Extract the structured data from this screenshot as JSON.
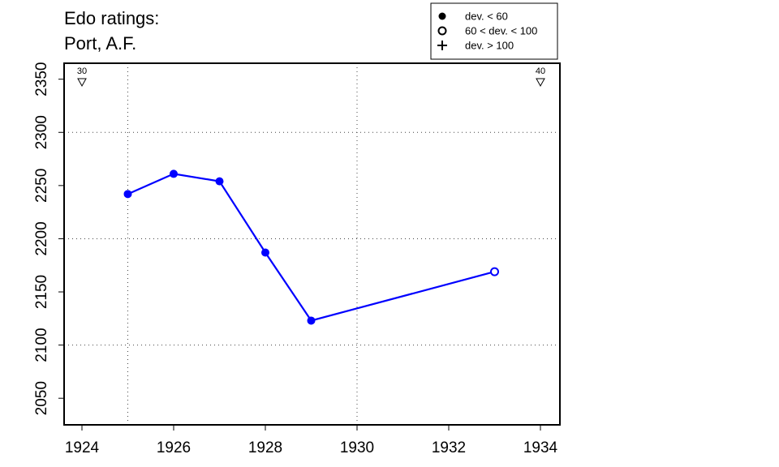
{
  "chart_data": {
    "type": "line",
    "title_lines": [
      "Edo ratings:",
      "Port, A.F."
    ],
    "xlabel": "",
    "ylabel": "",
    "xlim": [
      1924,
      1934
    ],
    "ylim": [
      2025,
      2365
    ],
    "x_ticks": [
      1924,
      1926,
      1928,
      1930,
      1932,
      1934
    ],
    "y_ticks": [
      2050,
      2100,
      2150,
      2200,
      2250,
      2300,
      2350
    ],
    "grid_x": [
      1925,
      1930
    ],
    "grid_y": [
      2100,
      2200,
      2300
    ],
    "series_color": "#0000ff",
    "series": [
      {
        "points": [
          {
            "x": 1925,
            "y": 2242,
            "marker": "filled"
          },
          {
            "x": 1926,
            "y": 2261,
            "marker": "filled"
          },
          {
            "x": 1927,
            "y": 2254,
            "marker": "filled"
          },
          {
            "x": 1928,
            "y": 2187,
            "marker": "filled"
          },
          {
            "x": 1929,
            "y": 2123,
            "marker": "filled"
          },
          {
            "x": 1933,
            "y": 2169,
            "marker": "open"
          }
        ]
      }
    ],
    "top_markers": [
      {
        "x": 1924,
        "label": "30"
      },
      {
        "x": 1934,
        "label": "40"
      }
    ],
    "legend": {
      "position": "top-right",
      "items": [
        {
          "symbol": "filled",
          "label": "dev. < 60"
        },
        {
          "symbol": "open",
          "label": "60 < dev. < 100"
        },
        {
          "symbol": "plus",
          "label": "dev. > 100"
        }
      ]
    }
  }
}
